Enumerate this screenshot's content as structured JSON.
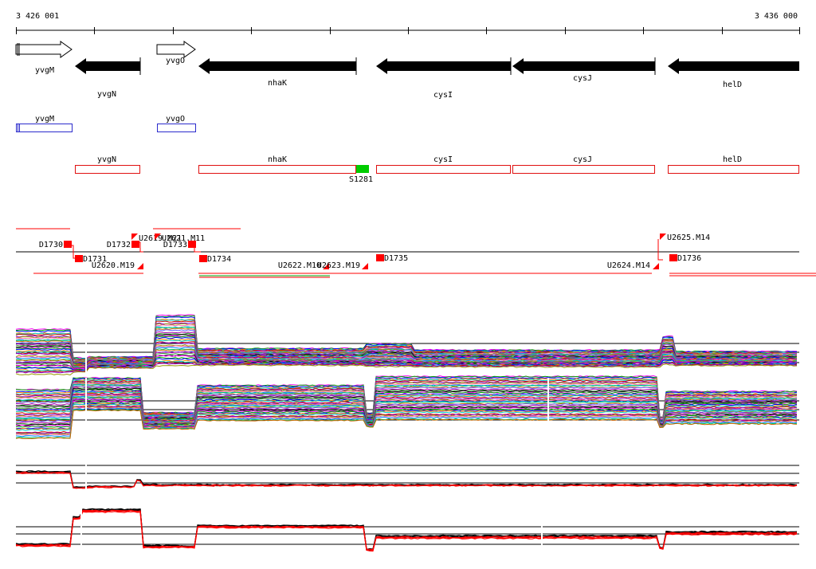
{
  "ruler": {
    "start_label": "3 426 001",
    "end_label": "3 436 000"
  },
  "genes_arrows": [
    {
      "name": "yvgM",
      "strand": "+",
      "style": "open"
    },
    {
      "name": "yvgN",
      "strand": "-",
      "style": "filled"
    },
    {
      "name": "yvgO",
      "strand": "+",
      "style": "open"
    },
    {
      "name": "nhaK",
      "strand": "-",
      "style": "filled"
    },
    {
      "name": "cysI",
      "strand": "-",
      "style": "filled"
    },
    {
      "name": "cysJ",
      "strand": "-",
      "style": "filled"
    },
    {
      "name": "helD",
      "strand": "-",
      "style": "filled"
    }
  ],
  "genes_boxes_plus": [
    {
      "name": "yvgM"
    },
    {
      "name": "yvgO"
    }
  ],
  "genes_boxes_minus": [
    {
      "name": "yvgN"
    },
    {
      "name": "nhaK"
    },
    {
      "name": "cysI"
    },
    {
      "name": "cysJ"
    },
    {
      "name": "helD"
    }
  ],
  "marker": {
    "name": "S1281",
    "color": "#00cc00"
  },
  "features": [
    {
      "name": "D1730"
    },
    {
      "name": "D1731"
    },
    {
      "name": "U2620.M19"
    },
    {
      "name": "D1732"
    },
    {
      "name": "U2619.M21"
    },
    {
      "name": "U2621.M11"
    },
    {
      "name": "D1733"
    },
    {
      "name": "D1734"
    },
    {
      "name": "U2622.M10"
    },
    {
      "name": "U2623.M19"
    },
    {
      "name": "D1735"
    },
    {
      "name": "U2624.M14"
    },
    {
      "name": "U2625.M14"
    },
    {
      "name": "D1736"
    }
  ],
  "colors": {
    "feature_red": "#ff0000",
    "plus_box": "#2b2bcc",
    "minus_box": "#e01010",
    "trace_black": "#000000",
    "trace_red": "#ff0000"
  }
}
